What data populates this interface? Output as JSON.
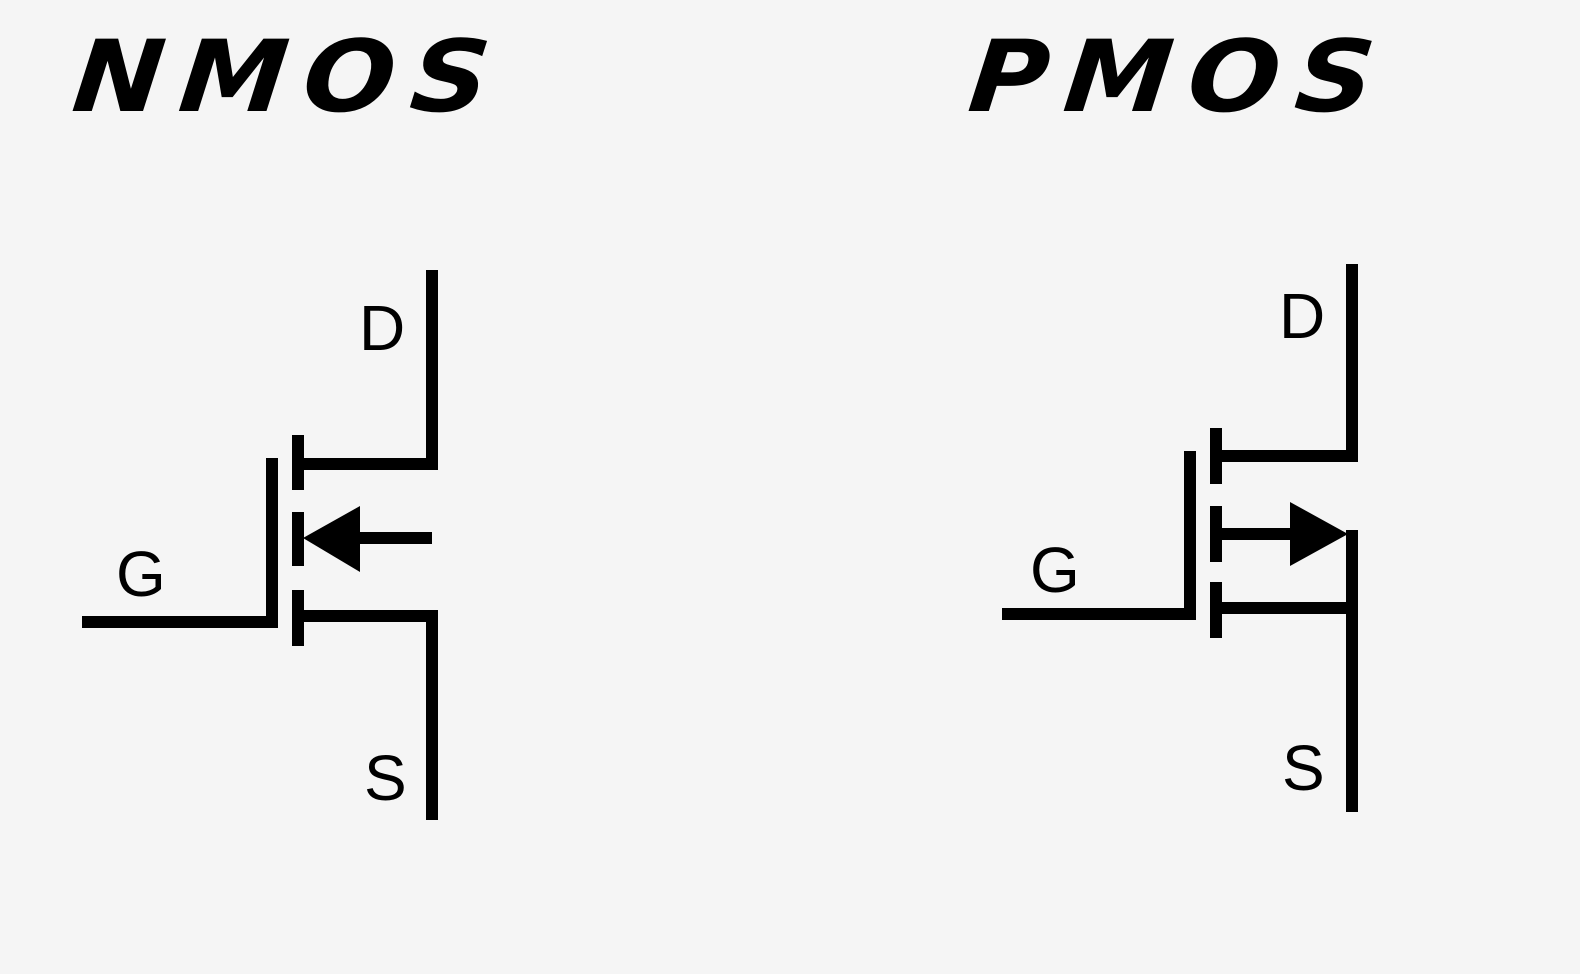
{
  "nmos": {
    "title": "NMOS",
    "labels": {
      "drain": "D",
      "gate": "G",
      "source": "S"
    }
  },
  "pmos": {
    "title": "PMOS",
    "labels": {
      "drain": "D",
      "gate": "G",
      "source": "S"
    }
  },
  "colors": {
    "background": "#f5f5f5",
    "ink": "#000000"
  }
}
